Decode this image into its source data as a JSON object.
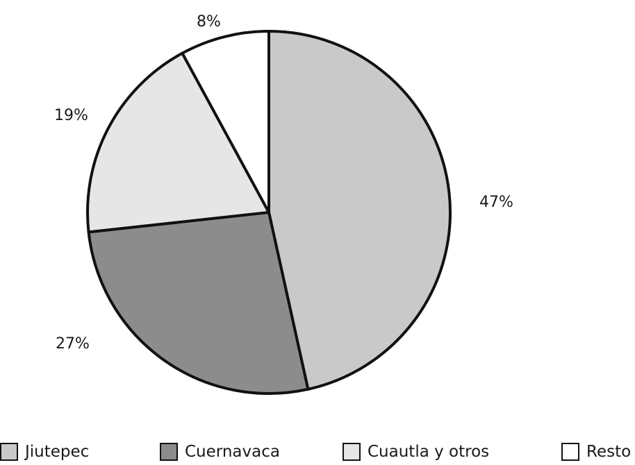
{
  "chart_data": {
    "type": "pie",
    "title": "",
    "categories": [
      "Jiutepec",
      "Cuernavaca",
      "Cuautla y otros",
      "Resto"
    ],
    "values": [
      47,
      27,
      19,
      8
    ],
    "value_labels": [
      "47%",
      "27%",
      "19%",
      "8%"
    ],
    "colors": [
      "#c9c9c9",
      "#8c8c8c",
      "#e6e6e6",
      "#ffffff"
    ],
    "start_angle_deg": 0,
    "direction": "clockwise",
    "legend_position": "bottom"
  }
}
